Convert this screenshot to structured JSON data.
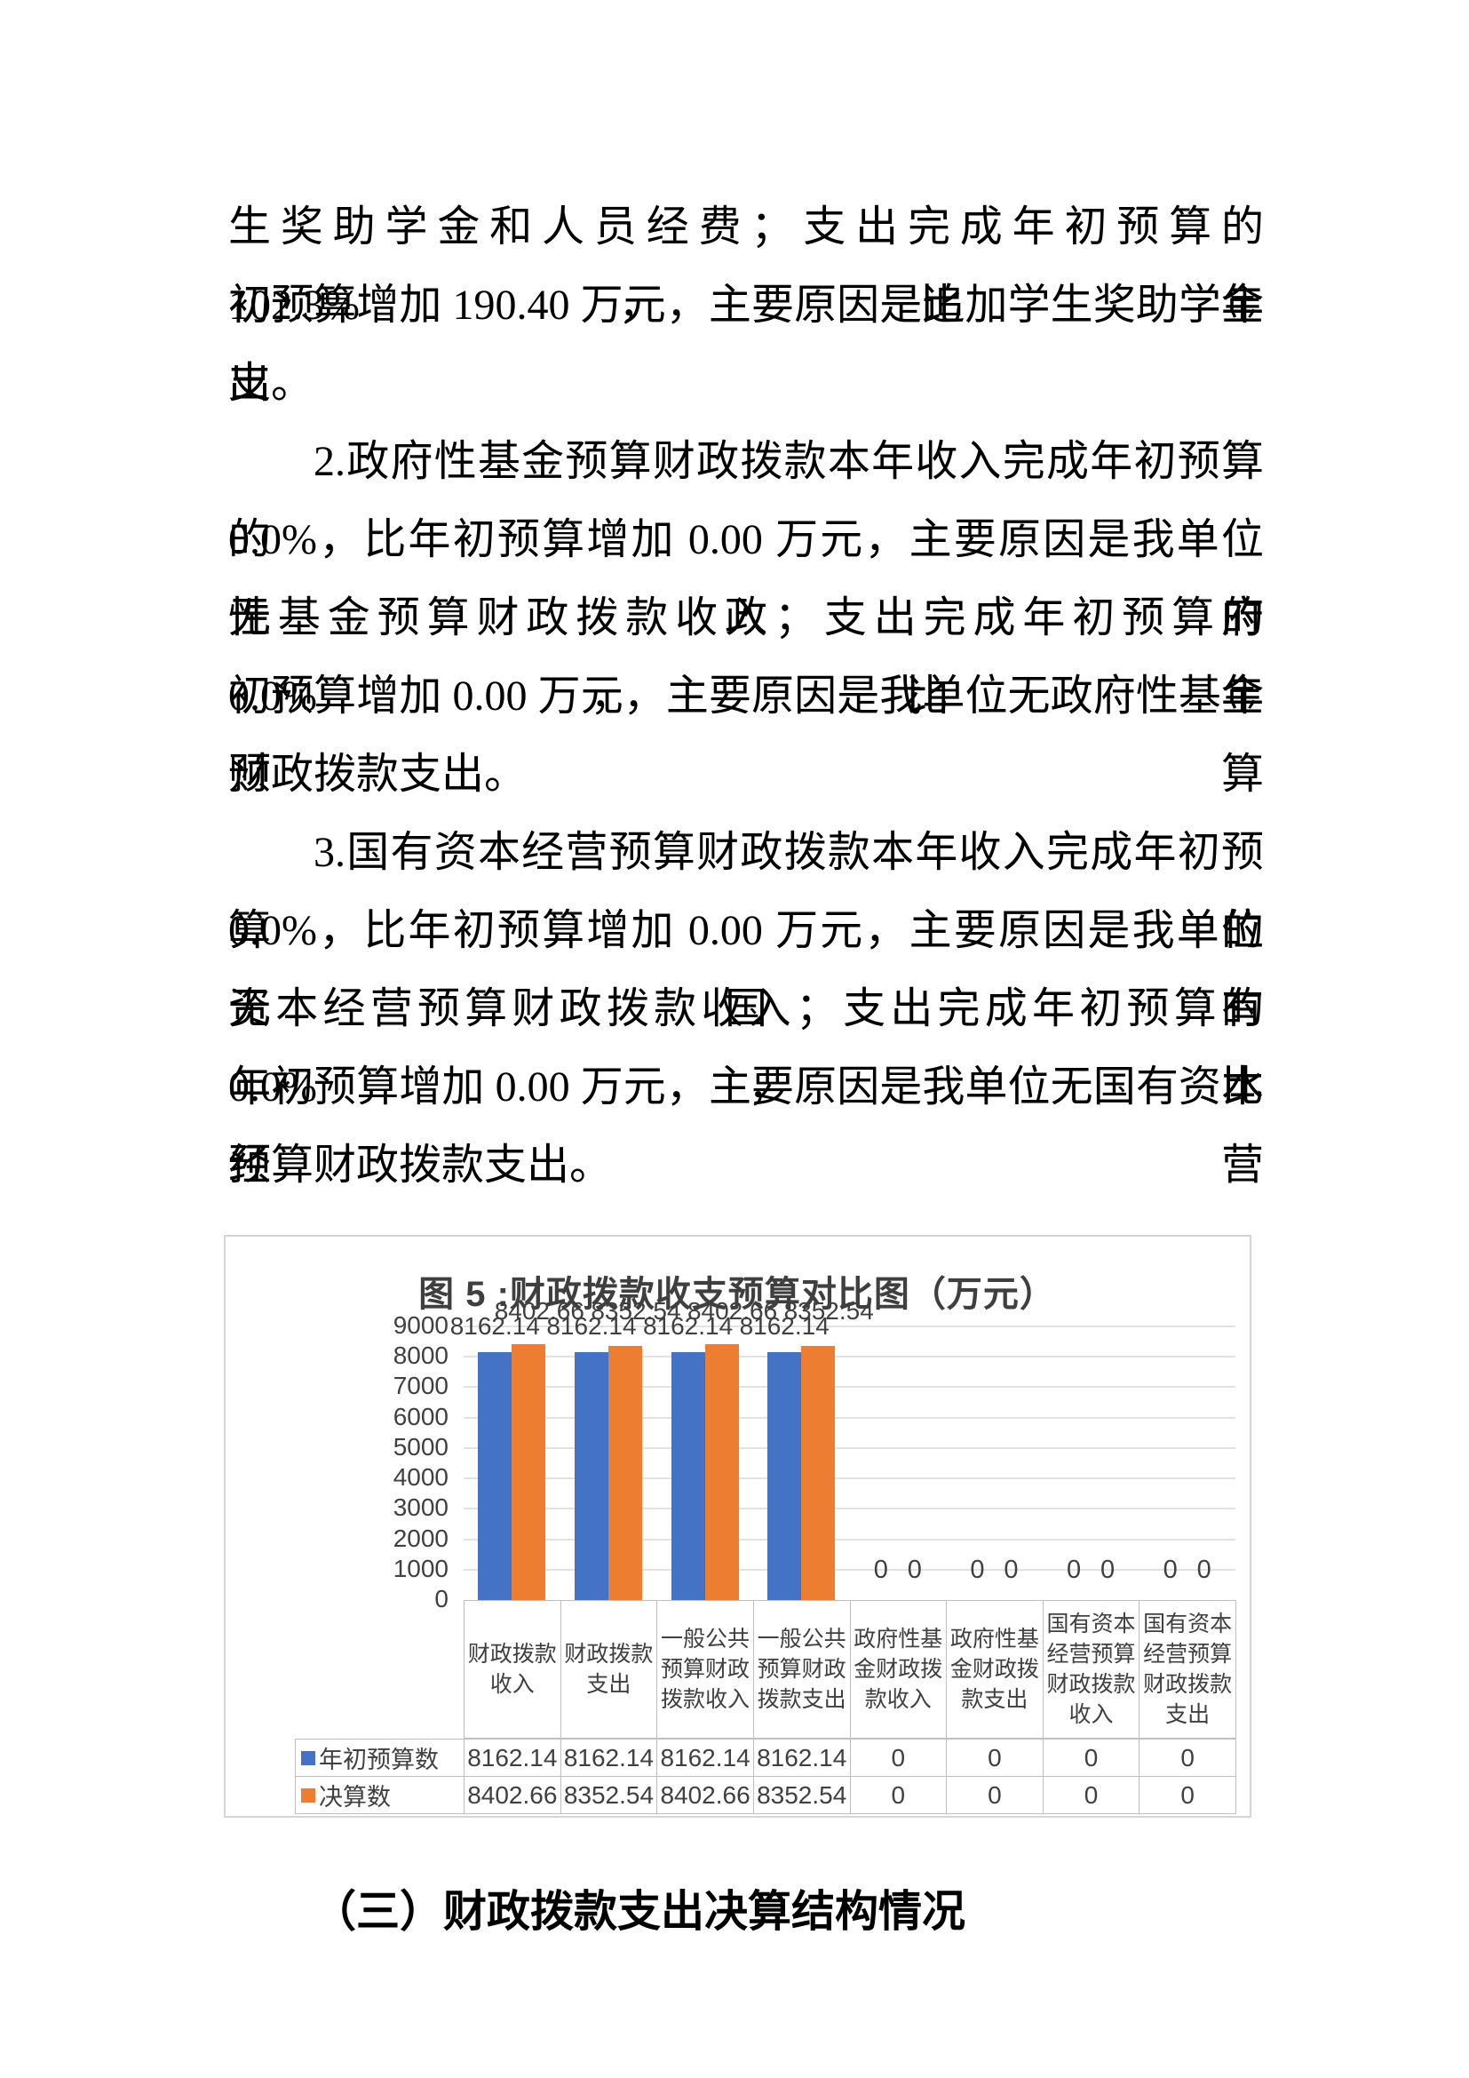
{
  "document": {
    "paragraphs": [
      {
        "indent_first": false,
        "lines": [
          "生奖助学金和人员经费；支出完成年初预算的 102.3%，比年",
          "初预算增加 190.40 万元，主要原因是追加学生奖助学金支",
          "出。"
        ]
      },
      {
        "indent_first": true,
        "lines": [
          "2.政府性基金预算财政拨款本年收入完成年初预算的",
          "0.0%，比年初预算增加 0.00 万元，主要原因是我单位无政府",
          "性基金预算财政拨款收入；支出完成年初预算的 0.0%，比年",
          "初预算增加 0.00 万元，主要原因是我单位无政府性基金预算",
          "财政拨款支出。"
        ]
      },
      {
        "indent_first": true,
        "lines": [
          "3.国有资本经营预算财政拨款本年收入完成年初预算的",
          "0.0%，比年初预算增加 0.00 万元，主要原因是我单位无国有",
          "资本经营预算财政拨款收入；支出完成年初预算的 0.0%，比",
          "年初预算增加 0.00 万元，主要原因是我单位无国有资本经营",
          "预算财政拨款支出。"
        ]
      }
    ],
    "section_heading": "（三）财政拨款支出决算结构情况"
  },
  "chart_data": {
    "type": "bar",
    "title": "图 5 :财政拨款收支预算对比图（万元）",
    "categories": [
      "财政拨款收入",
      "财政拨款支出",
      "一般公共预算财政拨款收入",
      "一般公共预算财政拨款支出",
      "政府性基金财政拨款收入",
      "政府性基金财政拨款支出",
      "国有资本经营预算财政拨款收入",
      "国有资本经营预算财政拨款支出"
    ],
    "series": [
      {
        "name": "年初预算数",
        "color": "#4472C4",
        "values": [
          8162.14,
          8162.14,
          8162.14,
          8162.14,
          0,
          0,
          0,
          0
        ]
      },
      {
        "name": "决算数",
        "color": "#ED7D31",
        "values": [
          8402.66,
          8352.54,
          8402.66,
          8352.54,
          0,
          0,
          0,
          0
        ]
      }
    ],
    "ylim": [
      0,
      9000
    ],
    "ytick_step": 1000,
    "grid": true,
    "legend_position": "left-of-table-rows",
    "data_table": true
  }
}
